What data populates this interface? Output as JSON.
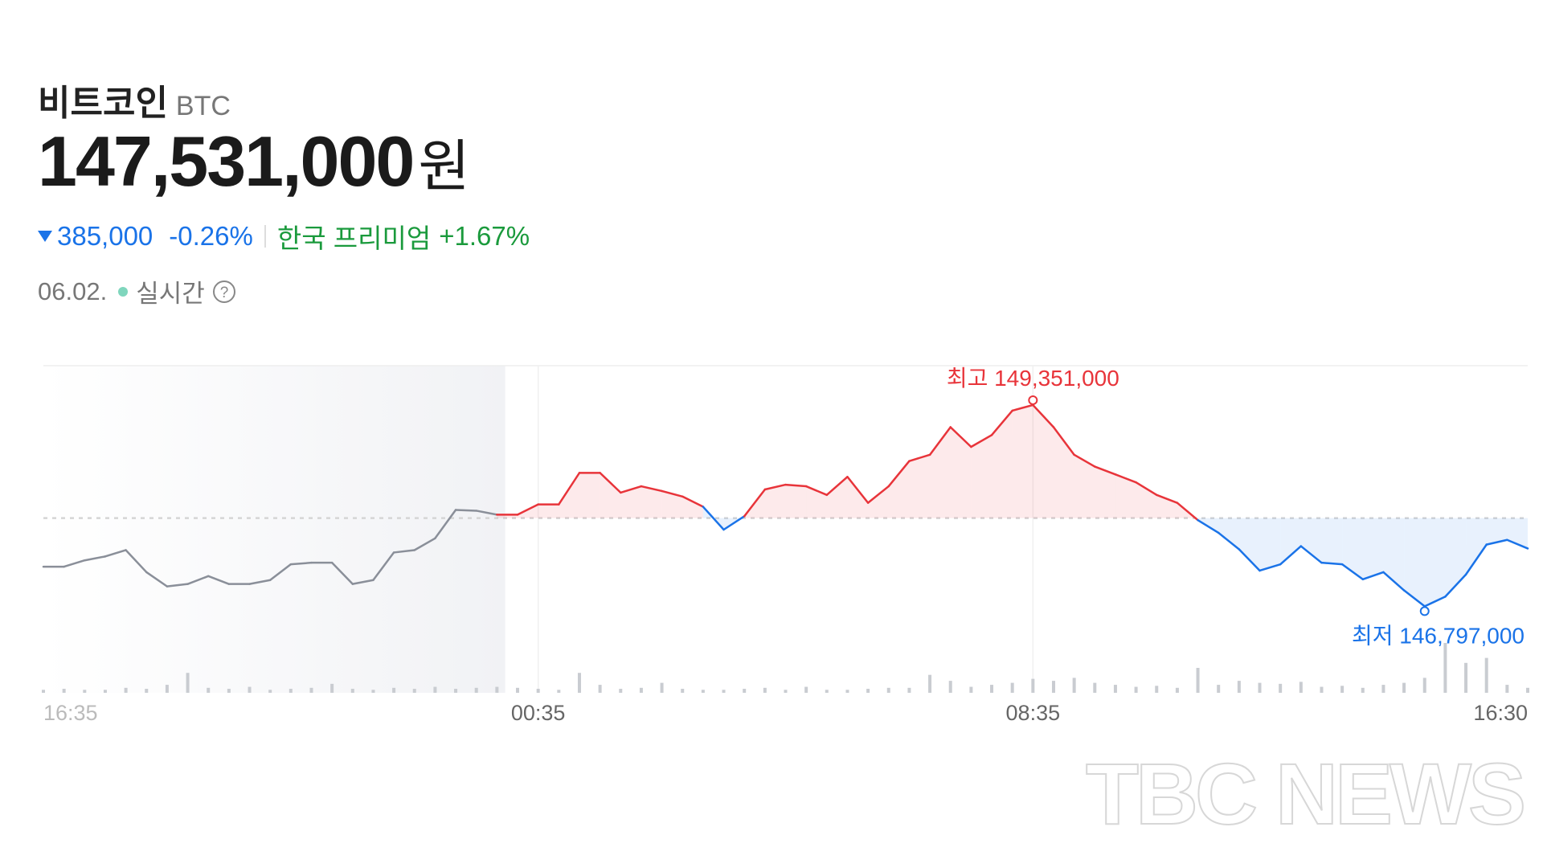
{
  "header": {
    "name": "비트코인",
    "symbol": "BTC",
    "price": "147,531,000",
    "unit": "원",
    "change": "385,000",
    "change_pct": "-0.26%",
    "premium_label": "한국 프리미엄",
    "premium": "+1.67%",
    "date": "06.02.",
    "live": "실시간"
  },
  "watermark": "TBC NEWS",
  "chart_data": {
    "type": "line",
    "categories": [
      "16:35",
      null,
      null,
      null,
      null,
      null,
      null,
      null,
      null,
      null,
      null,
      null,
      null,
      null,
      null,
      null,
      null,
      null,
      null,
      null,
      null,
      null,
      null,
      null,
      "00:35",
      null,
      null,
      null,
      null,
      null,
      null,
      null,
      null,
      null,
      null,
      null,
      null,
      null,
      null,
      null,
      null,
      null,
      null,
      null,
      null,
      null,
      null,
      null,
      "08:35",
      null,
      null,
      null,
      null,
      null,
      null,
      null,
      null,
      null,
      null,
      null,
      null,
      null,
      null,
      null,
      null,
      null,
      null,
      null,
      null,
      null,
      null,
      null,
      "16:30"
    ],
    "values": [
      147300000,
      147300000,
      147380000,
      147430000,
      147510000,
      147230000,
      147050000,
      147080000,
      147180000,
      147080000,
      147080000,
      147130000,
      147330000,
      147350000,
      147350000,
      147080000,
      147130000,
      147480000,
      147510000,
      147660000,
      148020000,
      148010000,
      147960000,
      147960000,
      148090000,
      148090000,
      148490000,
      148490000,
      148240000,
      148320000,
      148260000,
      148190000,
      148060000,
      147770000,
      147940000,
      148280000,
      148340000,
      148320000,
      148210000,
      148440000,
      148110000,
      148320000,
      148640000,
      148720000,
      149070000,
      148820000,
      148970000,
      149280000,
      149351000,
      149070000,
      148720000,
      148570000,
      148470000,
      148370000,
      148210000,
      148110000,
      147890000,
      147730000,
      147520000,
      147250000,
      147330000,
      147560000,
      147350000,
      147330000,
      147140000,
      147230000,
      147000000,
      146797000,
      146920000,
      147200000,
      147580000,
      147640000,
      147531000
    ],
    "volumes": [
      3,
      4,
      3,
      3,
      5,
      4,
      8,
      20,
      5,
      4,
      6,
      3,
      4,
      5,
      9,
      4,
      3,
      5,
      4,
      6,
      4,
      5,
      6,
      5,
      4,
      3,
      20,
      8,
      4,
      5,
      10,
      4,
      3,
      3,
      4,
      5,
      3,
      6,
      3,
      3,
      4,
      5,
      5,
      18,
      12,
      6,
      8,
      10,
      14,
      12,
      15,
      10,
      8,
      6,
      7,
      5,
      25,
      8,
      12,
      10,
      9,
      11,
      6,
      7,
      5,
      8,
      10,
      15,
      50,
      30,
      35,
      8,
      5
    ],
    "vlim": [
      0,
      50
    ],
    "ylim": [
      145700000,
      149850000
    ],
    "prev_close": 147916000,
    "colors": {
      "past": "#8a8f99",
      "up": "#e8343a",
      "down": "#1a73e8",
      "volume": "#c9ccd1"
    },
    "annotations": [
      {
        "label": "최고 149,351,000",
        "value": 149351000,
        "color": "#e8343a"
      },
      {
        "label": "최저 146,797,000",
        "value": 146797000,
        "color": "#1a73e8"
      }
    ]
  }
}
